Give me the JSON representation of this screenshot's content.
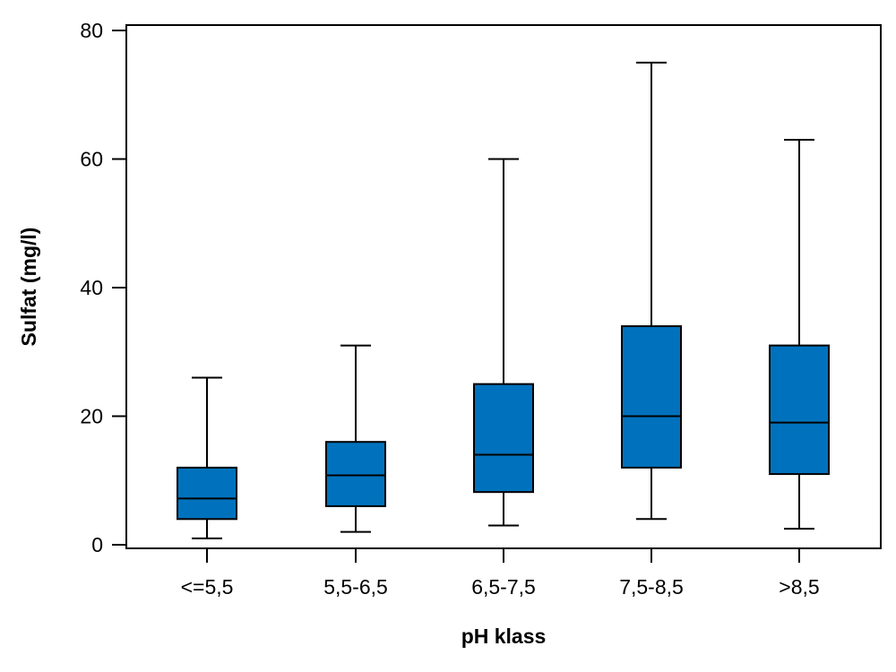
{
  "chart_data": {
    "type": "boxplot",
    "xlabel": "pH klass",
    "ylabel": "Sulfat (mg/l)",
    "ylim": [
      0,
      80
    ],
    "yticks": [
      0,
      20,
      40,
      60,
      80
    ],
    "categories": [
      "<=5,5",
      "5,5-6,5",
      "6,5-7,5",
      "7,5-8,5",
      ">8,5"
    ],
    "boxes": [
      {
        "min": 1,
        "q1": 4,
        "median": 7.2,
        "q3": 12,
        "max": 26
      },
      {
        "min": 2,
        "q1": 6,
        "median": 10.8,
        "q3": 16,
        "max": 31
      },
      {
        "min": 3,
        "q1": 8.2,
        "median": 14,
        "q3": 25,
        "max": 60
      },
      {
        "min": 4,
        "q1": 12,
        "median": 20,
        "q3": 34,
        "max": 75
      },
      {
        "min": 2.5,
        "q1": 11,
        "median": 19,
        "q3": 31,
        "max": 63
      }
    ],
    "grid": false,
    "legend": "none",
    "box_color": "#0072BD"
  }
}
